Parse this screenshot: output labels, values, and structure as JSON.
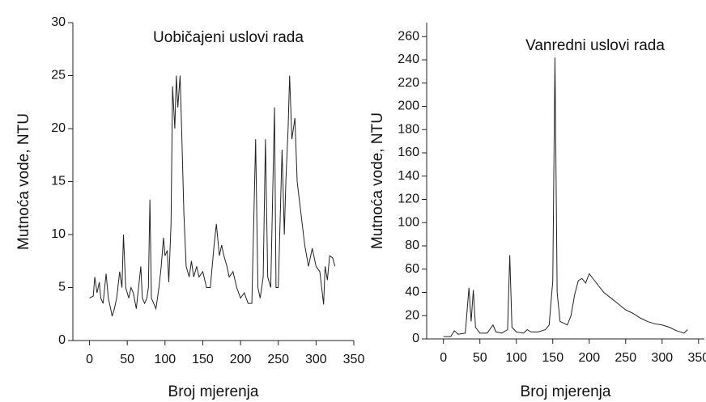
{
  "chart_data": [
    {
      "type": "line",
      "title": "Uobičajeni uslovi rada",
      "xlabel": "Broj mjerenja",
      "ylabel": "Mutnoća vode, NTU",
      "xlim": [
        -22,
        350
      ],
      "ylim": [
        0,
        30
      ],
      "xticks": [
        0,
        50,
        100,
        150,
        200,
        250,
        300,
        350
      ],
      "yticks": [
        0,
        5,
        10,
        15,
        20,
        25,
        30
      ],
      "series": [
        {
          "color": "#222222",
          "x": [
            0,
            5,
            7,
            10,
            13,
            15,
            18,
            22,
            25,
            28,
            30,
            33,
            36,
            40,
            43,
            45,
            48,
            52,
            55,
            58,
            62,
            65,
            68,
            70,
            73,
            76,
            78,
            80,
            82,
            85,
            88,
            92,
            95,
            98,
            100,
            103,
            105,
            108,
            110,
            113,
            115,
            117,
            120,
            122,
            125,
            128,
            132,
            135,
            138,
            142,
            145,
            150,
            155,
            160,
            165,
            168,
            172,
            175,
            178,
            182,
            185,
            190,
            195,
            200,
            205,
            210,
            215,
            220,
            223,
            226,
            230,
            233,
            236,
            240,
            245,
            247,
            250,
            255,
            258,
            260,
            263,
            265,
            268,
            272,
            275,
            280,
            285,
            290,
            295,
            300,
            305,
            310,
            312,
            315,
            318,
            322,
            325
          ],
          "values": [
            4,
            4.2,
            6,
            4.5,
            5.5,
            4,
            3.5,
            6.3,
            4,
            3,
            2.3,
            3,
            4,
            6.5,
            5,
            10,
            5,
            4,
            5,
            4.5,
            3,
            5,
            7,
            4,
            3.5,
            4,
            5,
            13.3,
            4,
            3.5,
            3,
            5,
            7,
            9.7,
            8,
            8.5,
            5.5,
            11,
            24,
            20,
            25,
            22,
            25,
            20,
            12,
            7,
            6,
            7.5,
            6,
            7,
            6,
            6.5,
            5,
            5,
            9,
            11,
            8,
            9,
            8,
            7,
            6,
            6.5,
            5,
            4,
            4.5,
            3.5,
            3.5,
            19,
            5,
            4,
            6,
            19,
            6,
            5,
            22,
            5,
            5,
            18,
            10,
            15,
            20,
            25,
            19,
            21,
            15,
            12,
            9,
            7,
            8.7,
            7,
            6.5,
            3.4,
            7,
            5.7,
            8,
            7.8,
            7
          ]
        }
      ]
    },
    {
      "type": "line",
      "title": "Vanredni uslovi rada",
      "xlabel": "Broj mjerenja",
      "ylabel": "Mutnoća vode, NTU",
      "xlim": [
        -23,
        358
      ],
      "ylim": [
        0,
        272
      ],
      "xticks": [
        0,
        50,
        100,
        150,
        200,
        250,
        300,
        350
      ],
      "yticks": [
        0,
        20,
        40,
        60,
        80,
        100,
        120,
        140,
        160,
        180,
        200,
        220,
        240,
        260
      ],
      "series": [
        {
          "color": "#222222",
          "x": [
            0,
            10,
            15,
            20,
            30,
            35,
            38,
            41,
            44,
            50,
            60,
            68,
            72,
            80,
            88,
            91,
            94,
            100,
            110,
            115,
            120,
            130,
            140,
            145,
            150,
            153,
            156,
            160,
            170,
            175,
            180,
            185,
            190,
            195,
            200,
            205,
            210,
            220,
            230,
            240,
            250,
            260,
            270,
            280,
            290,
            300,
            310,
            320,
            330,
            335
          ],
          "values": [
            2,
            2,
            7,
            4,
            5,
            44,
            15,
            42,
            10,
            5,
            5,
            12,
            6,
            5,
            8,
            72,
            10,
            6,
            5,
            8,
            6,
            6,
            8,
            12,
            50,
            242,
            40,
            15,
            12,
            20,
            38,
            50,
            52,
            48,
            56,
            52,
            48,
            40,
            35,
            30,
            25,
            22,
            18,
            15,
            13,
            12,
            10,
            7,
            5,
            8
          ]
        }
      ]
    }
  ]
}
